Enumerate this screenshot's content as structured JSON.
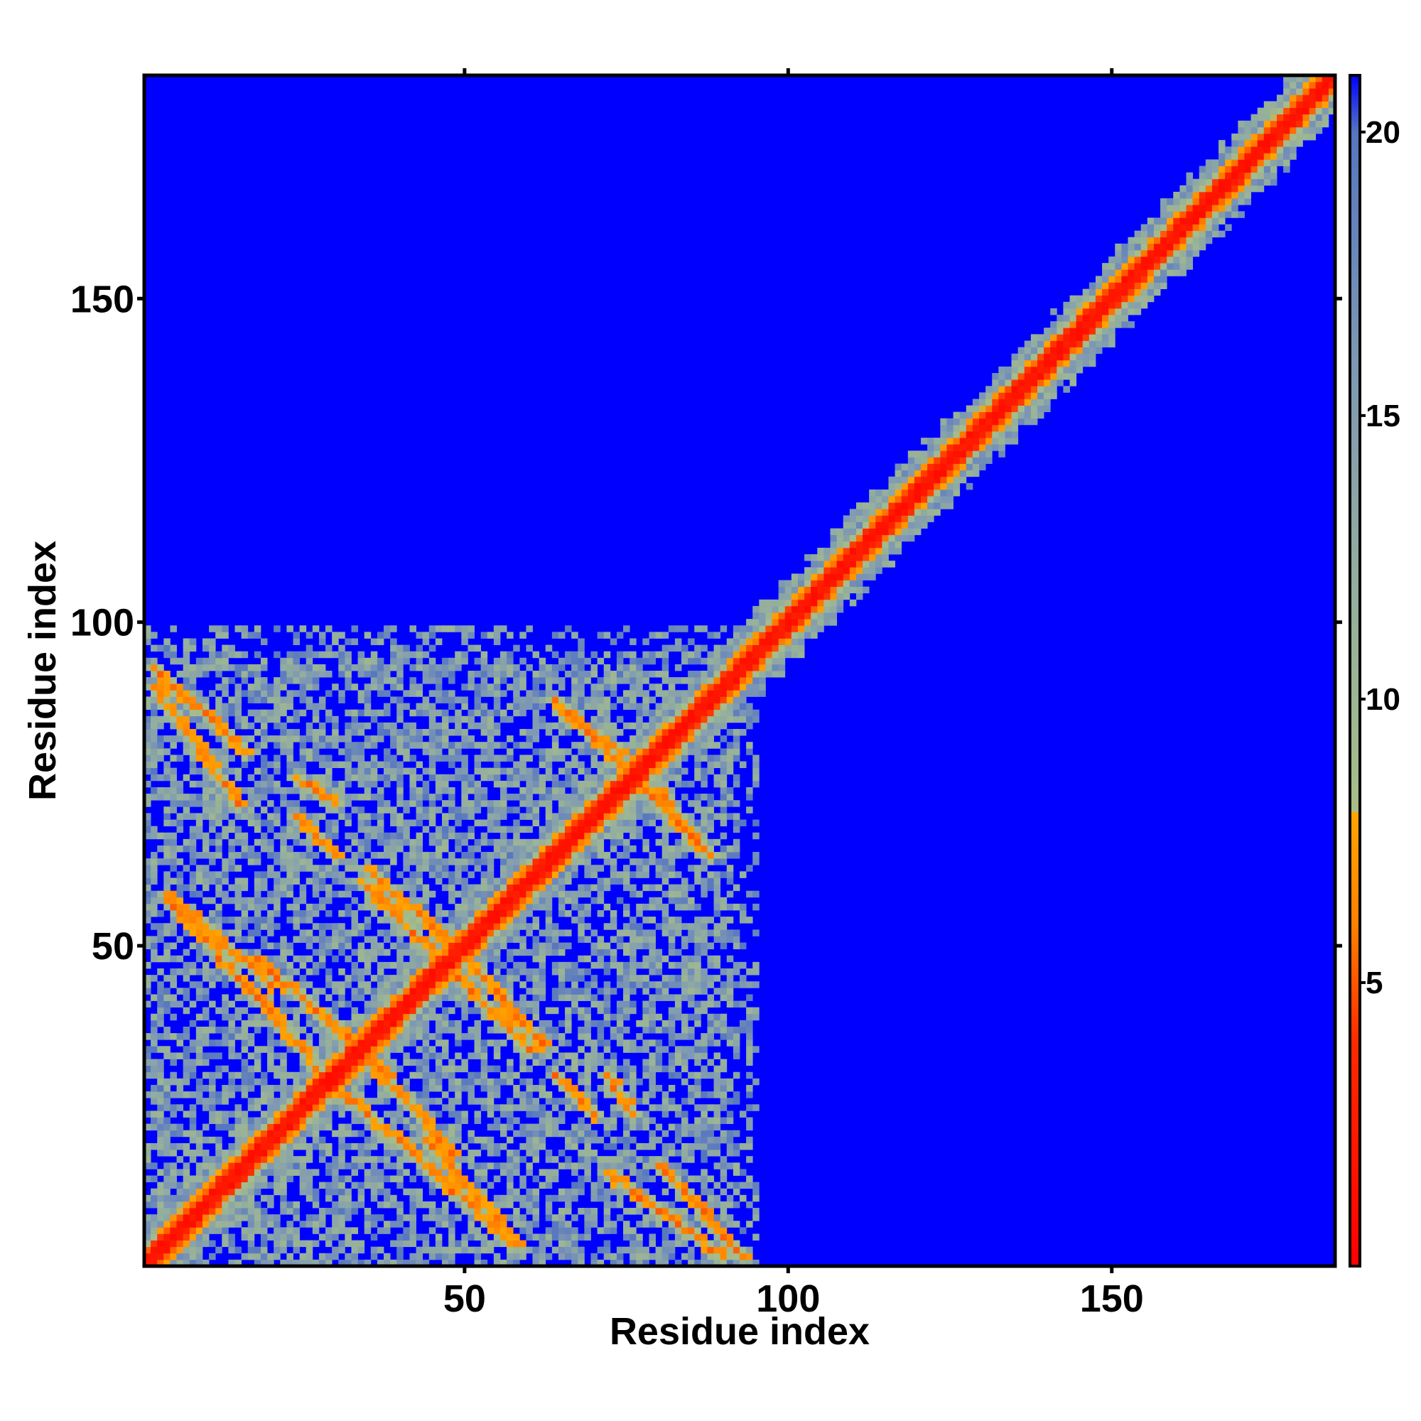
{
  "chart_data": {
    "type": "heatmap",
    "title": "",
    "xlabel": "Residue index",
    "ylabel": "Residue index",
    "xlim": [
      1,
      184
    ],
    "ylim": [
      1,
      184
    ],
    "x_ticks": [
      50,
      100,
      150
    ],
    "y_ticks": [
      50,
      100,
      150
    ],
    "n_residues": 184,
    "grid": false,
    "legend": "colorbar-right",
    "colorbar": {
      "min": 0,
      "max": 21,
      "ticks": [
        5,
        10,
        15,
        20
      ],
      "stops": [
        {
          "value": 0,
          "color": "#ff0000"
        },
        {
          "value": 4,
          "color": "#ff2a00"
        },
        {
          "value": 6,
          "color": "#ff8000"
        },
        {
          "value": 8,
          "color": "#ffa500"
        },
        {
          "value": 8.01,
          "color": "#a8bd88"
        },
        {
          "value": 12,
          "color": "#93ae9e"
        },
        {
          "value": 16,
          "color": "#7d97b4"
        },
        {
          "value": 20,
          "color": "#5575c0"
        },
        {
          "value": 21,
          "color": "#0000ff"
        }
      ]
    },
    "background_value": 21,
    "background_color": "#0000ff",
    "diagonal_band": {
      "from": 1,
      "to": 184,
      "halfwidth": 4
    },
    "off_diagonal_contacts": [
      {
        "i": [
          2,
          16
        ],
        "j": [
          93,
          80
        ],
        "strength": 0.9
      },
      {
        "i": [
          4,
          20
        ],
        "j": [
          57,
          40
        ],
        "strength": 0.85
      },
      {
        "i": [
          18,
          38
        ],
        "j": [
          48,
          30
        ],
        "strength": 0.7
      },
      {
        "i": [
          24,
          30
        ],
        "j": [
          76,
          72
        ],
        "strength": 0.8
      },
      {
        "i": [
          35,
          48
        ],
        "j": [
          62,
          50
        ],
        "strength": 0.85
      },
      {
        "i": [
          30,
          42
        ],
        "j": [
          28,
          18
        ],
        "strength": 0.8
      },
      {
        "i": [
          44,
          58
        ],
        "j": [
          20,
          4
        ],
        "strength": 0.85
      },
      {
        "i": [
          48,
          60
        ],
        "j": [
          46,
          34
        ],
        "strength": 0.8
      },
      {
        "i": [
          65,
          74
        ],
        "j": [
          86,
          80
        ],
        "strength": 0.85
      },
      {
        "i": [
          78,
          88
        ],
        "j": [
          74,
          64
        ],
        "strength": 0.85
      },
      {
        "i": [
          72,
          90
        ],
        "j": [
          15,
          2
        ],
        "strength": 0.85
      },
      {
        "i": [
          64,
          70
        ],
        "j": [
          30,
          24
        ],
        "strength": 0.7
      }
    ],
    "contact_region": {
      "x_max": 95,
      "y_max": 99
    }
  }
}
